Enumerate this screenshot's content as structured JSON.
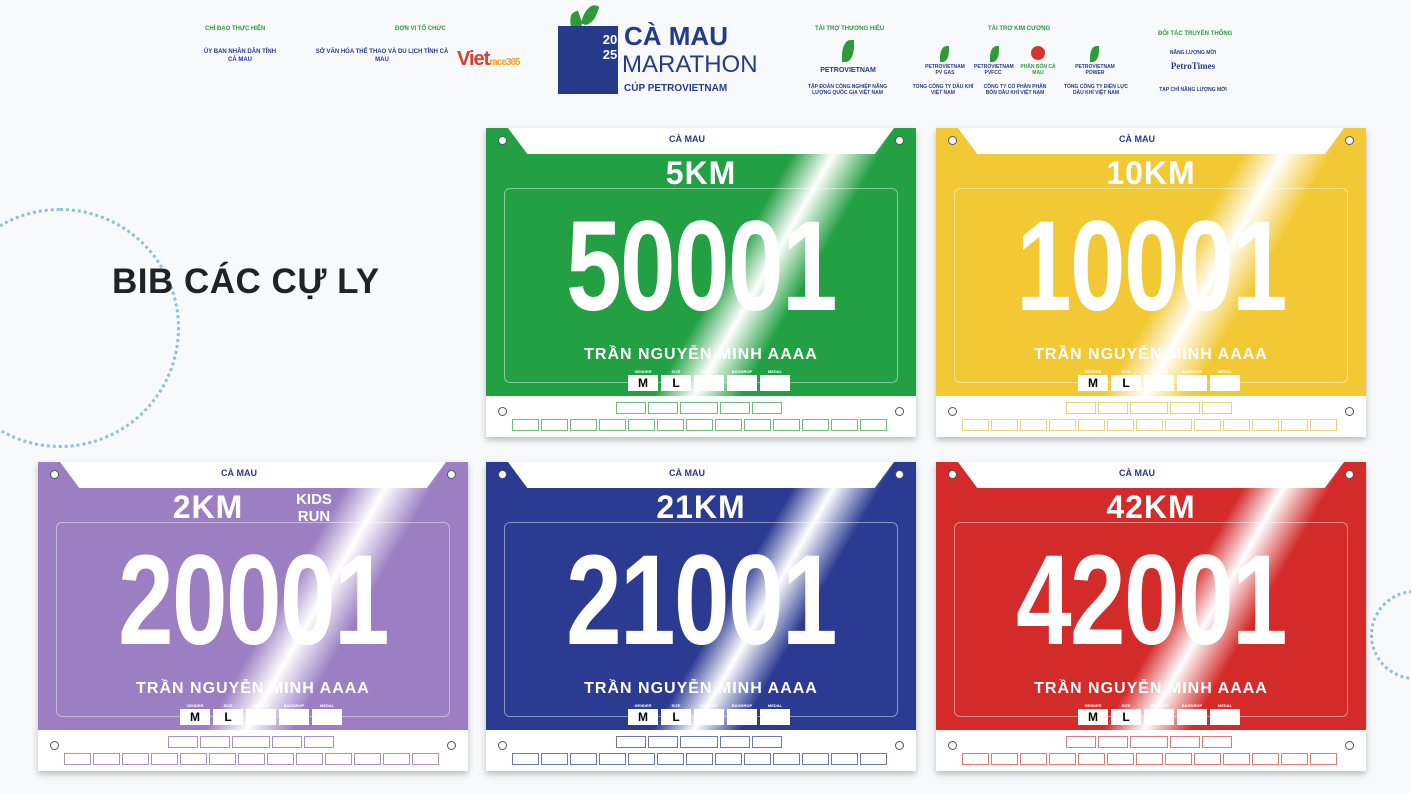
{
  "header": {
    "groups": [
      {
        "label": "CHỈ ĐẠO THỰC HIỆN",
        "orgs": [
          "ỦY BAN NHÂN DÂN TỈNH CÀ MAU"
        ]
      },
      {
        "label": "ĐƠN VỊ TỔ CHỨC",
        "orgs": [
          "SỞ VĂN HÓA THỂ THAO VÀ DU LỊCH TỈNH CÀ MAU"
        ]
      },
      {
        "label": "TÀI TRỢ THƯƠNG HIỆU",
        "orgs": [
          "TẬP ĐOÀN CÔNG NGHIỆP NĂNG LƯỢNG QUỐC GIA VIỆT NAM"
        ]
      },
      {
        "label": "TÀI TRỢ KIM CƯƠNG",
        "orgs": [
          "TỔNG CÔNG TY DẦU KHÍ VIỆT NAM",
          "CÔNG TY CỔ PHẦN PHÂN BÓN DẦU KHÍ VIỆT NAM",
          "TỔNG CÔNG TY ĐIỆN LỰC DẦU KHÍ VIỆT NAM"
        ]
      },
      {
        "label": "ĐỐI TÁC TRUYỀN THÔNG",
        "orgs": [
          "TẠP CHÍ NĂNG LƯỢNG MỚI"
        ]
      }
    ],
    "vietrace": {
      "main": "Viet",
      "sub": "race365"
    },
    "petro_logos": [
      "PETROVIETNAM",
      "PETROVIETNAM PV GAS",
      "PETROVIETNAM PVFCC",
      "PHÂN BÓN CÀ MAU",
      "PETROVIETNAM POWER"
    ],
    "media_logos": [
      "NĂNG LƯỢNG MỚI",
      "PetroTimes"
    ],
    "event_logo": {
      "year": "2025",
      "line1": "CÀ MAU",
      "line2": "MARATHON",
      "line3": "CÚP PETROVIETNAM"
    }
  },
  "title": "BIB CÁC CỰ LY",
  "bib_labels": [
    "GENDER",
    "SIZE",
    "RACEKIT",
    "BAGDROP",
    "MEDAL"
  ],
  "bibs": [
    {
      "distance": "5KM",
      "number": "50001",
      "name": "TRẦN NGUYỄN MINH AAAA",
      "gender": "M",
      "size": "L",
      "color": "#22a043",
      "box_color": "#6cbf7a"
    },
    {
      "distance": "10KM",
      "number": "10001",
      "name": "TRẦN NGUYỄN MINH AAAA",
      "gender": "M",
      "size": "L",
      "color": "#f2c935",
      "box_color": "#e6d37a"
    },
    {
      "distance": "2KM",
      "extra": "KIDS RUN",
      "number": "20001",
      "name": "TRẦN NGUYỄN MINH AAAA",
      "gender": "M",
      "size": "L",
      "color": "#9b7fc2",
      "box_color": "#a98fcc"
    },
    {
      "distance": "21KM",
      "number": "21001",
      "name": "TRẦN NGUYỄN MINH AAAA",
      "gender": "M",
      "size": "L",
      "color": "#2c3b92",
      "box_color": "#6b76b4"
    },
    {
      "distance": "42KM",
      "number": "42001",
      "name": "TRẦN NGUYỄN MINH AAAA",
      "gender": "M",
      "size": "L",
      "color": "#d32a2a",
      "box_color": "#e07a7a"
    }
  ]
}
